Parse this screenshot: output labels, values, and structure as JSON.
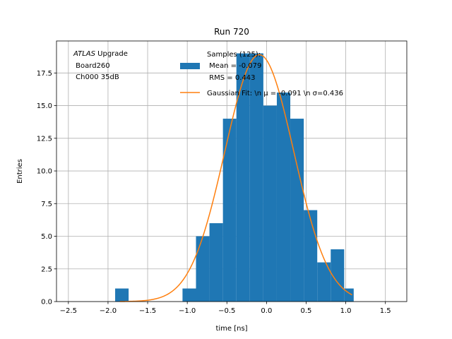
{
  "chart_data": {
    "type": "bar",
    "title": "Run 720",
    "xlabel": "time [ns]",
    "ylabel": "Entries",
    "xlim": [
      -2.65,
      1.77
    ],
    "ylim": [
      0,
      19.95
    ],
    "grid": true,
    "x_ticks": [
      -2.5,
      -2.0,
      -1.5,
      -1.0,
      -0.5,
      0.0,
      0.5,
      1.0,
      1.5
    ],
    "x_tick_labels": [
      "−2.5",
      "−2.0",
      "−1.5",
      "−1.0",
      "−0.5",
      "0.0",
      "0.5",
      "1.0",
      "1.5"
    ],
    "y_ticks": [
      0.0,
      2.5,
      5.0,
      7.5,
      10.0,
      12.5,
      15.0,
      17.5
    ],
    "y_tick_labels": [
      "0.0",
      "2.5",
      "5.0",
      "7.5",
      "10.0",
      "12.5",
      "15.0",
      "17.5"
    ],
    "annotation": {
      "italic": "ATLAS",
      "rest": " Upgrade",
      "line2": " Board260",
      "line3": " Ch000 35dB"
    },
    "legend": {
      "placement": "top-center",
      "histogram_lines": [
        "Samples (125):",
        " Mean = -0.079",
        " RMS = 0.443"
      ],
      "fit_label": "Gaussian Fit: \\n μ = -0.091 \\n σ=0.436"
    },
    "series": [
      {
        "kind": "histogram",
        "color": "#1f77b4",
        "bins": [
          {
            "x0": -1.91,
            "x1": -1.74,
            "count": 1
          },
          {
            "x0": -1.06,
            "x1": -0.89,
            "count": 1
          },
          {
            "x0": -0.89,
            "x1": -0.72,
            "count": 5
          },
          {
            "x0": -0.72,
            "x1": -0.55,
            "count": 6
          },
          {
            "x0": -0.55,
            "x1": -0.38,
            "count": 14
          },
          {
            "x0": -0.38,
            "x1": -0.21,
            "count": 19
          },
          {
            "x0": -0.21,
            "x1": -0.04,
            "count": 19
          },
          {
            "x0": -0.04,
            "x1": 0.13,
            "count": 15
          },
          {
            "x0": 0.13,
            "x1": 0.3,
            "count": 16
          },
          {
            "x0": 0.3,
            "x1": 0.47,
            "count": 14
          },
          {
            "x0": 0.47,
            "x1": 0.64,
            "count": 7
          },
          {
            "x0": 0.64,
            "x1": 0.81,
            "count": 3
          },
          {
            "x0": 0.81,
            "x1": 0.98,
            "count": 4
          },
          {
            "x0": 0.98,
            "x1": 1.1,
            "count": 1
          }
        ]
      },
      {
        "kind": "gaussian_fit",
        "color": "#ff7f0e",
        "amplitude": 18.9,
        "mu": -0.091,
        "sigma": 0.436,
        "x_range": [
          -1.85,
          1.08
        ]
      }
    ]
  }
}
